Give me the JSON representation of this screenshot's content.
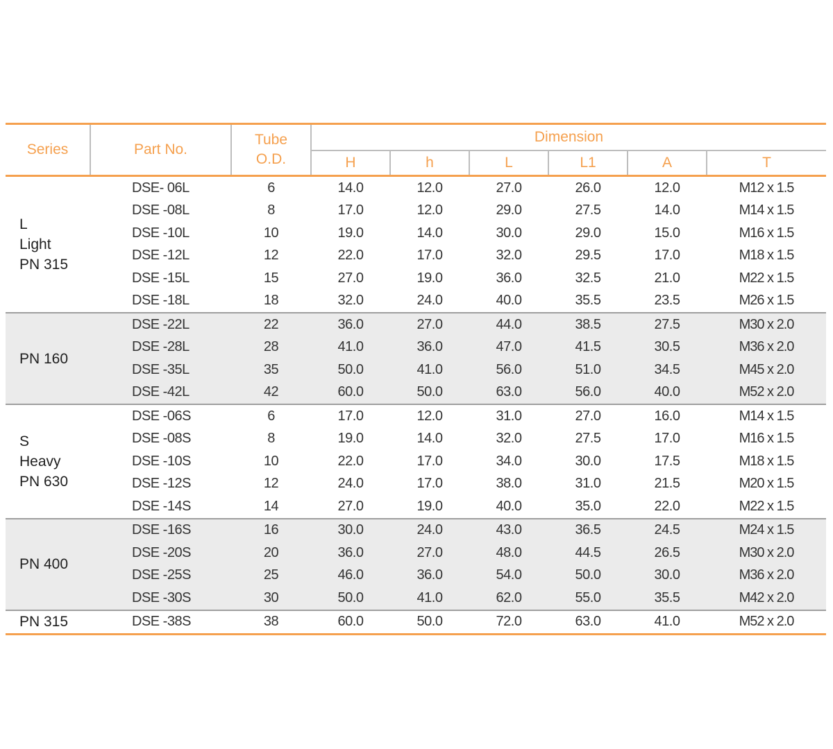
{
  "header": {
    "series": "Series",
    "part_no": "Part No.",
    "tube_line1": "Tube",
    "tube_line2": "O.D.",
    "dimension": "Dimension",
    "dims": [
      "H",
      "h",
      "L",
      "L1",
      "A",
      "T"
    ]
  },
  "groups": [
    {
      "series": [
        "L",
        "Light",
        "PN 315"
      ],
      "rows": [
        [
          "DSE- 06L",
          "6",
          "14.0",
          "12.0",
          "27.0",
          "26.0",
          "12.0",
          "M12 x 1.5"
        ],
        [
          "DSE -08L",
          "8",
          "17.0",
          "12.0",
          "29.0",
          "27.5",
          "14.0",
          "M14 x 1.5"
        ],
        [
          "DSE -10L",
          "10",
          "19.0",
          "14.0",
          "30.0",
          "29.0",
          "15.0",
          "M16 x 1.5"
        ],
        [
          "DSE -12L",
          "12",
          "22.0",
          "17.0",
          "32.0",
          "29.5",
          "17.0",
          "M18 x 1.5"
        ],
        [
          "DSE -15L",
          "15",
          "27.0",
          "19.0",
          "36.0",
          "32.5",
          "21.0",
          "M22 x 1.5"
        ],
        [
          "DSE -18L",
          "18",
          "32.0",
          "24.0",
          "40.0",
          "35.5",
          "23.5",
          "M26 x 1.5"
        ]
      ]
    },
    {
      "series": [
        "PN 160"
      ],
      "rows": [
        [
          "DSE -22L",
          "22",
          "36.0",
          "27.0",
          "44.0",
          "38.5",
          "27.5",
          "M30 x 2.0"
        ],
        [
          "DSE -28L",
          "28",
          "41.0",
          "36.0",
          "47.0",
          "41.5",
          "30.5",
          "M36 x 2.0"
        ],
        [
          "DSE -35L",
          "35",
          "50.0",
          "41.0",
          "56.0",
          "51.0",
          "34.5",
          "M45 x 2.0"
        ],
        [
          "DSE -42L",
          "42",
          "60.0",
          "50.0",
          "63.0",
          "56.0",
          "40.0",
          "M52 x 2.0"
        ]
      ]
    },
    {
      "series": [
        "S",
        "Heavy",
        "PN 630"
      ],
      "rows": [
        [
          "DSE -06S",
          "6",
          "17.0",
          "12.0",
          "31.0",
          "27.0",
          "16.0",
          "M14 x 1.5"
        ],
        [
          "DSE -08S",
          "8",
          "19.0",
          "14.0",
          "32.0",
          "27.5",
          "17.0",
          "M16 x 1.5"
        ],
        [
          "DSE -10S",
          "10",
          "22.0",
          "17.0",
          "34.0",
          "30.0",
          "17.5",
          "M18 x 1.5"
        ],
        [
          "DSE -12S",
          "12",
          "24.0",
          "17.0",
          "38.0",
          "31.0",
          "21.5",
          "M20 x 1.5"
        ],
        [
          "DSE -14S",
          "14",
          "27.0",
          "19.0",
          "40.0",
          "35.0",
          "22.0",
          "M22 x 1.5"
        ]
      ]
    },
    {
      "series": [
        "PN 400"
      ],
      "rows": [
        [
          "DSE -16S",
          "16",
          "30.0",
          "24.0",
          "43.0",
          "36.5",
          "24.5",
          "M24 x 1.5"
        ],
        [
          "DSE -20S",
          "20",
          "36.0",
          "27.0",
          "48.0",
          "44.5",
          "26.5",
          "M30 x 2.0"
        ],
        [
          "DSE -25S",
          "25",
          "46.0",
          "36.0",
          "54.0",
          "50.0",
          "30.0",
          "M36 x 2.0"
        ],
        [
          "DSE -30S",
          "30",
          "50.0",
          "41.0",
          "62.0",
          "55.0",
          "35.5",
          "M42 x 2.0"
        ]
      ]
    },
    {
      "series": [
        "PN 315"
      ],
      "rows": [
        [
          "DSE -38S",
          "38",
          "60.0",
          "50.0",
          "72.0",
          "63.0",
          "41.0",
          "M52 x 2.0"
        ]
      ]
    }
  ]
}
